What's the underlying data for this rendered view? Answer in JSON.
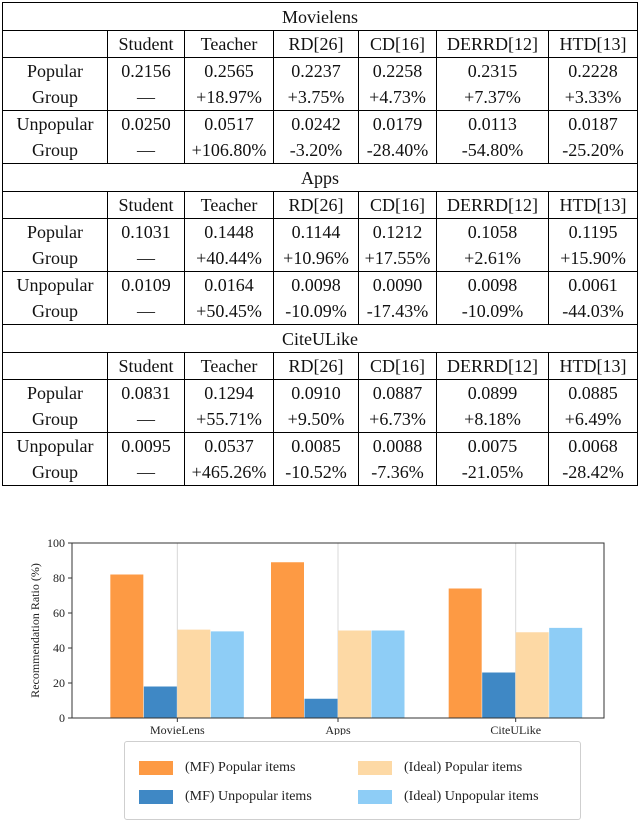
{
  "table": {
    "headers": [
      "Student",
      "Teacher",
      "RD[26]",
      "CD[16]",
      "DERRD[12]",
      "HTD[13]"
    ],
    "datasets": [
      {
        "name": "Movielens",
        "groups": [
          {
            "label1": "Popular",
            "label2": "Group",
            "values": [
              "0.2156",
              "0.2565",
              "0.2237",
              "0.2258",
              "0.2315",
              "0.2228"
            ],
            "changes": [
              "—",
              "+18.97%",
              "+3.75%",
              "+4.73%",
              "+7.37%",
              "+3.33%"
            ]
          },
          {
            "label1": "Unpopular",
            "label2": "Group",
            "values": [
              "0.0250",
              "0.0517",
              "0.0242",
              "0.0179",
              "0.0113",
              "0.0187"
            ],
            "changes": [
              "—",
              "+106.80%",
              "-3.20%",
              "-28.40%",
              "-54.80%",
              "-25.20%"
            ]
          }
        ]
      },
      {
        "name": "Apps",
        "groups": [
          {
            "label1": "Popular",
            "label2": "Group",
            "values": [
              "0.1031",
              "0.1448",
              "0.1144",
              "0.1212",
              "0.1058",
              "0.1195"
            ],
            "changes": [
              "—",
              "+40.44%",
              "+10.96%",
              "+17.55%",
              "+2.61%",
              "+15.90%"
            ]
          },
          {
            "label1": "Unpopular",
            "label2": "Group",
            "values": [
              "0.0109",
              "0.0164",
              "0.0098",
              "0.0090",
              "0.0098",
              "0.0061"
            ],
            "changes": [
              "—",
              "+50.45%",
              "-10.09%",
              "-17.43%",
              "-10.09%",
              "-44.03%"
            ]
          }
        ]
      },
      {
        "name": "CiteULike",
        "groups": [
          {
            "label1": "Popular",
            "label2": "Group",
            "values": [
              "0.0831",
              "0.1294",
              "0.0910",
              "0.0887",
              "0.0899",
              "0.0885"
            ],
            "changes": [
              "—",
              "+55.71%",
              "+9.50%",
              "+6.73%",
              "+8.18%",
              "+6.49%"
            ]
          },
          {
            "label1": "Unpopular",
            "label2": "Group",
            "values": [
              "0.0095",
              "0.0537",
              "0.0085",
              "0.0088",
              "0.0075",
              "0.0068"
            ],
            "changes": [
              "—",
              "+465.26%",
              "-10.52%",
              "-7.36%",
              "-21.05%",
              "-28.42%"
            ]
          }
        ]
      }
    ]
  },
  "chart_data": {
    "type": "bar",
    "categories": [
      "MovieLens",
      "Apps",
      "CiteULike"
    ],
    "series": [
      {
        "name": "(MF) Popular items",
        "color": "#fd9a44",
        "values": [
          82,
          89,
          74
        ]
      },
      {
        "name": "(MF) Unpopular items",
        "color": "#3f88c5",
        "values": [
          18,
          11,
          26
        ]
      },
      {
        "name": "(Ideal) Popular items",
        "color": "#fdd9a5",
        "values": [
          50.5,
          50,
          49
        ]
      },
      {
        "name": "(Ideal) Unpopular items",
        "color": "#8ecdf6",
        "values": [
          49.5,
          50,
          51.5
        ]
      }
    ],
    "ylabel": "Recommendation Ratio (%)",
    "xlabel": "",
    "ylim": [
      0,
      100
    ],
    "yticks": [
      0,
      20,
      40,
      60,
      80,
      100
    ],
    "grid": "vertical",
    "legend": "bottom"
  }
}
